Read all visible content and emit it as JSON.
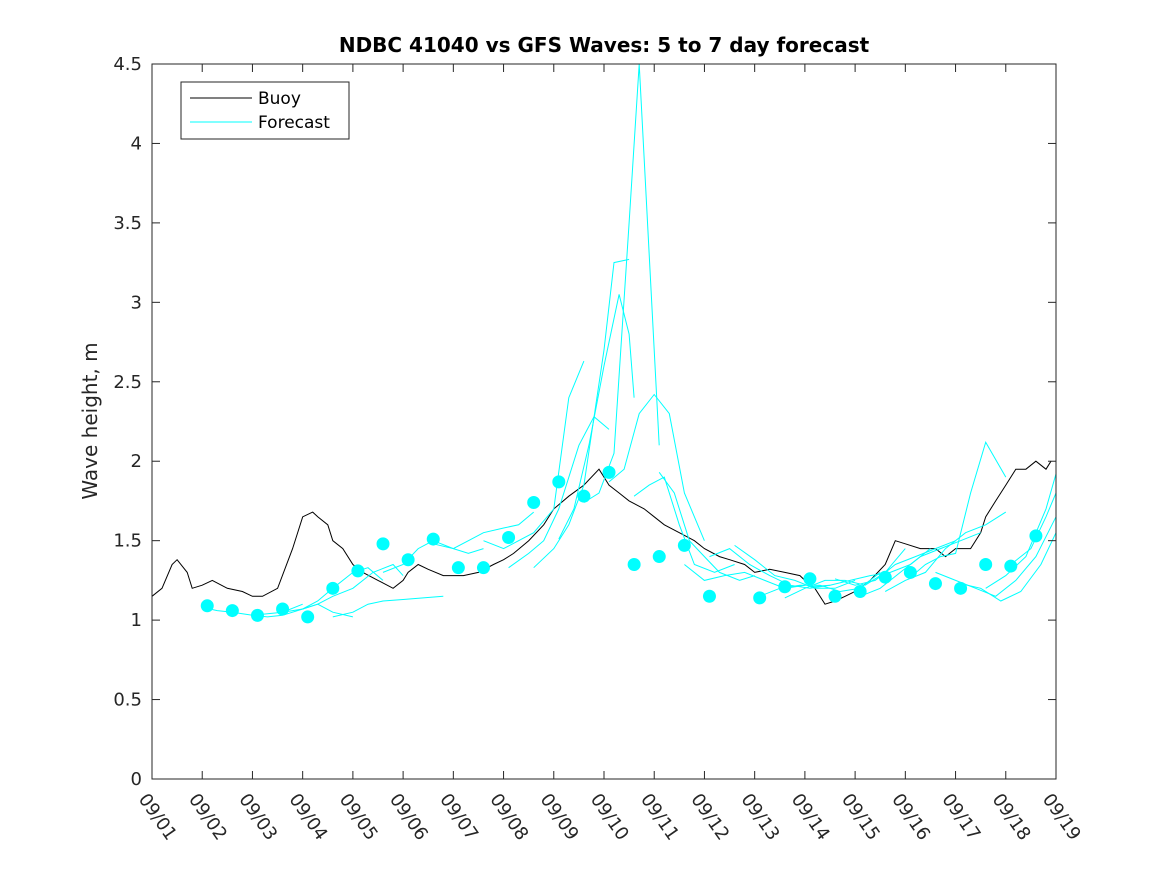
{
  "chart_data": {
    "type": "line",
    "title": "NDBC 41040 vs GFS Waves: 5 to 7 day forecast",
    "ylabel": "Wave height, m",
    "xlabel": "",
    "xlim": [
      0,
      18
    ],
    "ylim": [
      0,
      4.5
    ],
    "x_ticks": [
      0,
      1,
      2,
      3,
      4,
      5,
      6,
      7,
      8,
      9,
      10,
      11,
      12,
      13,
      14,
      15,
      16,
      17,
      18
    ],
    "x_tick_labels": [
      "09/01",
      "09/02",
      "09/03",
      "09/04",
      "09/05",
      "09/06",
      "09/07",
      "09/08",
      "09/09",
      "09/10",
      "09/11",
      "09/12",
      "09/13",
      "09/14",
      "09/15",
      "09/16",
      "09/17",
      "09/18",
      "09/19"
    ],
    "y_ticks": [
      0,
      0.5,
      1,
      1.5,
      2,
      2.5,
      3,
      3.5,
      4,
      4.5
    ],
    "y_tick_labels": [
      "0",
      "0.5",
      "1",
      "1.5",
      "2",
      "2.5",
      "3",
      "3.5",
      "4",
      "4.5"
    ],
    "legend": {
      "position": "top-left",
      "entries": [
        "Buoy",
        "Forecast"
      ]
    },
    "colors": {
      "buoy": "#000000",
      "forecast": "#00ffff"
    },
    "series": [
      {
        "name": "Buoy",
        "color": "#000000",
        "x": [
          0,
          0.2,
          0.4,
          0.5,
          0.7,
          0.8,
          1.0,
          1.2,
          1.5,
          1.8,
          2.0,
          2.2,
          2.5,
          2.8,
          3.0,
          3.2,
          3.3,
          3.5,
          3.6,
          3.8,
          4.0,
          4.2,
          4.5,
          4.8,
          5.0,
          5.1,
          5.3,
          5.5,
          5.8,
          6.0,
          6.2,
          6.5,
          6.8,
          7.0,
          7.2,
          7.5,
          7.8,
          8.0,
          8.3,
          8.6,
          8.9,
          9.0,
          9.1,
          9.3,
          9.5,
          9.8,
          10.0,
          10.2,
          10.5,
          10.8,
          11.0,
          11.3,
          11.5,
          11.8,
          12.0,
          12.3,
          12.6,
          12.9,
          13.0,
          13.2,
          13.4,
          13.6,
          13.8,
          14.0,
          14.3,
          14.6,
          14.8,
          15.0,
          15.3,
          15.6,
          15.8,
          16.0,
          16.3,
          16.5,
          16.6,
          16.8,
          17.0,
          17.2,
          17.4,
          17.6,
          17.8,
          17.9
        ],
        "y": [
          1.15,
          1.2,
          1.35,
          1.38,
          1.3,
          1.2,
          1.22,
          1.25,
          1.2,
          1.18,
          1.15,
          1.15,
          1.2,
          1.45,
          1.65,
          1.68,
          1.65,
          1.6,
          1.5,
          1.45,
          1.35,
          1.3,
          1.25,
          1.2,
          1.25,
          1.3,
          1.35,
          1.32,
          1.28,
          1.28,
          1.28,
          1.3,
          1.35,
          1.38,
          1.42,
          1.5,
          1.6,
          1.7,
          1.78,
          1.85,
          1.95,
          1.9,
          1.85,
          1.8,
          1.75,
          1.7,
          1.65,
          1.6,
          1.55,
          1.5,
          1.45,
          1.4,
          1.38,
          1.35,
          1.3,
          1.32,
          1.3,
          1.28,
          1.25,
          1.2,
          1.1,
          1.12,
          1.15,
          1.18,
          1.25,
          1.35,
          1.5,
          1.48,
          1.45,
          1.45,
          1.4,
          1.45,
          1.45,
          1.55,
          1.65,
          1.75,
          1.85,
          1.95,
          1.95,
          2.0,
          1.95,
          2.0
        ]
      },
      {
        "name": "Forecast",
        "color": "#00ffff",
        "segments": [
          {
            "x": [
              1.0,
              1.3,
              1.6,
              2.0,
              2.3,
              2.6,
              3.0
            ],
            "y": [
              1.08,
              1.06,
              1.05,
              1.03,
              1.04,
              1.05,
              1.1
            ]
          },
          {
            "x": [
              2.0,
              2.3,
              2.6,
              3.0,
              3.3,
              3.6,
              4.0
            ],
            "y": [
              1.03,
              1.02,
              1.03,
              1.07,
              1.1,
              1.05,
              1.02
            ]
          },
          {
            "x": [
              2.6,
              3.0,
              3.3,
              3.6,
              4.0,
              4.3,
              4.6
            ],
            "y": [
              1.05,
              1.07,
              1.12,
              1.2,
              1.3,
              1.33,
              1.25
            ]
          },
          {
            "x": [
              3.0,
              3.3,
              3.6,
              4.0,
              4.4,
              4.8,
              5.0
            ],
            "y": [
              1.07,
              1.1,
              1.15,
              1.2,
              1.3,
              1.35,
              1.28
            ]
          },
          {
            "x": [
              3.6,
              4.0,
              4.3,
              4.6,
              5.0,
              5.4,
              5.8
            ],
            "y": [
              1.02,
              1.05,
              1.1,
              1.12,
              1.13,
              1.14,
              1.15
            ]
          },
          {
            "x": [
              4.6,
              5.0,
              5.3,
              5.6,
              6.0,
              6.3,
              6.6
            ],
            "y": [
              1.3,
              1.35,
              1.45,
              1.5,
              1.45,
              1.42,
              1.45
            ]
          },
          {
            "x": [
              5.6,
              6.0,
              6.3,
              6.6,
              7.0,
              7.3,
              7.6
            ],
            "y": [
              1.48,
              1.45,
              1.5,
              1.55,
              1.58,
              1.6,
              1.68
            ]
          },
          {
            "x": [
              6.6,
              7.0,
              7.3,
              7.6,
              8.0,
              8.3,
              8.6
            ],
            "y": [
              1.5,
              1.45,
              1.5,
              1.55,
              1.7,
              2.4,
              2.63
            ]
          },
          {
            "x": [
              7.1,
              7.5,
              7.8,
              8.1,
              8.5,
              8.8,
              9.1
            ],
            "y": [
              1.33,
              1.42,
              1.5,
              1.7,
              2.1,
              2.28,
              2.2
            ]
          },
          {
            "x": [
              7.6,
              8.0,
              8.3,
              8.6,
              9.0,
              9.2,
              9.5
            ],
            "y": [
              1.33,
              1.45,
              1.6,
              1.85,
              2.7,
              3.25,
              3.27
            ]
          },
          {
            "x": [
              8.1,
              8.4,
              8.7,
              9.0,
              9.3,
              9.5,
              9.6
            ],
            "y": [
              1.51,
              1.7,
              2.1,
              2.6,
              3.05,
              2.8,
              2.4
            ]
          },
          {
            "x": [
              8.6,
              8.9,
              9.2,
              9.5,
              9.7,
              9.9,
              10.1
            ],
            "y": [
              1.74,
              1.8,
              2.05,
              3.5,
              4.5,
              3.3,
              2.1
            ]
          },
          {
            "x": [
              9.1,
              9.4,
              9.7,
              10.0,
              10.3,
              10.6,
              11.0
            ],
            "y": [
              1.87,
              1.95,
              2.3,
              2.42,
              2.3,
              1.8,
              1.5
            ]
          },
          {
            "x": [
              9.6,
              9.9,
              10.2,
              10.5,
              10.8,
              11.2,
              11.6
            ],
            "y": [
              1.78,
              1.85,
              1.9,
              1.6,
              1.35,
              1.3,
              1.35
            ]
          },
          {
            "x": [
              10.1,
              10.4,
              10.7,
              11.0,
              11.3,
              11.7,
              12.0
            ],
            "y": [
              1.93,
              1.8,
              1.5,
              1.4,
              1.3,
              1.25,
              1.28
            ]
          },
          {
            "x": [
              10.6,
              11.0,
              11.4,
              11.8,
              12.2,
              12.6,
              13.0
            ],
            "y": [
              1.35,
              1.25,
              1.28,
              1.3,
              1.25,
              1.2,
              1.22
            ]
          },
          {
            "x": [
              11.1,
              11.5,
              11.9,
              12.3,
              12.7,
              13.1,
              13.5
            ],
            "y": [
              1.4,
              1.45,
              1.35,
              1.28,
              1.22,
              1.2,
              1.22
            ]
          },
          {
            "x": [
              11.6,
              12.0,
              12.4,
              12.8,
              13.2,
              13.6,
              14.0
            ],
            "y": [
              1.47,
              1.38,
              1.28,
              1.25,
              1.2,
              1.2,
              1.25
            ]
          },
          {
            "x": [
              12.1,
              12.5,
              12.9,
              13.3,
              13.7,
              14.1,
              14.5
            ],
            "y": [
              1.15,
              1.2,
              1.22,
              1.22,
              1.18,
              1.2,
              1.3
            ]
          },
          {
            "x": [
              12.6,
              13.0,
              13.4,
              13.8,
              14.2,
              14.6,
              15.0
            ],
            "y": [
              1.14,
              1.2,
              1.25,
              1.25,
              1.22,
              1.3,
              1.45
            ]
          },
          {
            "x": [
              13.1,
              13.5,
              13.9,
              14.3,
              14.7,
              15.1,
              15.5
            ],
            "y": [
              1.21,
              1.22,
              1.25,
              1.28,
              1.3,
              1.35,
              1.45
            ]
          },
          {
            "x": [
              13.6,
              14.0,
              14.4,
              14.8,
              15.2,
              15.6,
              16.0
            ],
            "y": [
              1.26,
              1.22,
              1.25,
              1.35,
              1.4,
              1.45,
              1.5
            ]
          },
          {
            "x": [
              14.1,
              14.5,
              14.9,
              15.3,
              15.7,
              16.1,
              16.5
            ],
            "y": [
              1.15,
              1.2,
              1.3,
              1.4,
              1.45,
              1.5,
              1.55
            ]
          },
          {
            "x": [
              14.6,
              15.0,
              15.4,
              15.8,
              16.2,
              16.6,
              17.0
            ],
            "y": [
              1.18,
              1.25,
              1.3,
              1.45,
              1.55,
              1.6,
              1.68
            ]
          },
          {
            "x": [
              15.1,
              15.4,
              15.7,
              16.0,
              16.3,
              16.6,
              17.0
            ],
            "y": [
              1.27,
              1.35,
              1.4,
              1.42,
              1.8,
              2.12,
              1.9
            ]
          },
          {
            "x": [
              15.6,
              16.0,
              16.4,
              16.8,
              17.2,
              17.6,
              18.0
            ],
            "y": [
              1.3,
              1.25,
              1.2,
              1.15,
              1.25,
              1.4,
              1.65
            ]
          },
          {
            "x": [
              16.1,
              16.5,
              16.9,
              17.3,
              17.7,
              18.0
            ],
            "y": [
              1.23,
              1.2,
              1.12,
              1.18,
              1.35,
              1.55
            ]
          },
          {
            "x": [
              16.6,
              17.0,
              17.4,
              17.8,
              18.0
            ],
            "y": [
              1.2,
              1.28,
              1.4,
              1.7,
              1.92
            ]
          },
          {
            "x": [
              17.1,
              17.5,
              17.8,
              18.0
            ],
            "y": [
              1.35,
              1.45,
              1.65,
              1.8
            ]
          }
        ],
        "markers": {
          "x": [
            1.1,
            1.6,
            2.1,
            2.6,
            3.1,
            3.6,
            4.1,
            4.6,
            5.1,
            5.6,
            6.1,
            6.6,
            7.1,
            7.6,
            8.1,
            8.6,
            9.1,
            9.6,
            10.1,
            10.6,
            11.1,
            12.1,
            12.6,
            13.1,
            13.6,
            14.1,
            14.6,
            15.1,
            15.6,
            16.1,
            16.6,
            17.1,
            17.6
          ],
          "y": [
            1.09,
            1.06,
            1.03,
            1.07,
            1.02,
            1.2,
            1.31,
            1.48,
            1.38,
            1.51,
            1.33,
            1.33,
            1.52,
            1.74,
            1.87,
            1.78,
            1.93,
            1.35,
            1.4,
            1.47,
            1.15,
            1.14,
            1.21,
            1.26,
            1.15,
            1.18,
            1.27,
            1.3,
            1.23,
            1.2,
            1.35,
            1.34,
            1.53
          ]
        }
      }
    ]
  }
}
